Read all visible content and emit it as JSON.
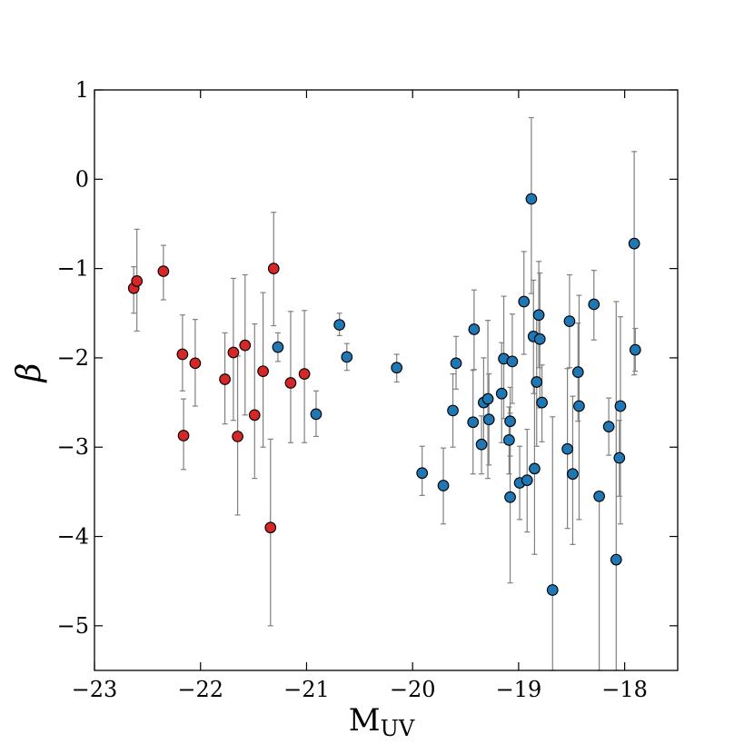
{
  "chart_data": {
    "type": "scatter",
    "xlabel": "M",
    "xlabel_sub": "UV",
    "ylabel": "β",
    "xlim": [
      -23,
      -17.5
    ],
    "ylim": [
      -5.5,
      1
    ],
    "xticks": [
      -23,
      -22,
      -21,
      -20,
      -19,
      -18
    ],
    "yticks": [
      1,
      0,
      -1,
      -2,
      -3,
      -4,
      -5
    ],
    "xtick_labels": [
      "−23",
      "−22",
      "−21",
      "−20",
      "−19",
      "−18"
    ],
    "ytick_labels": [
      "1",
      "0",
      "−1",
      "−2",
      "−3",
      "−4",
      "−5"
    ],
    "grid": false,
    "colors": {
      "red": "#d62728",
      "blue": "#1f77b4",
      "errorbar": "#808080",
      "edge": "#000000"
    },
    "series": [
      {
        "color": "red",
        "points": [
          {
            "x": -22.63,
            "y": -1.22,
            "lo": -1.5,
            "hi": -0.98
          },
          {
            "x": -22.6,
            "y": -1.14,
            "lo": -1.7,
            "hi": -0.56
          },
          {
            "x": -22.35,
            "y": -1.03,
            "lo": -1.35,
            "hi": -0.74
          },
          {
            "x": -22.17,
            "y": -1.96,
            "lo": -2.37,
            "hi": -1.52
          },
          {
            "x": -22.16,
            "y": -2.87,
            "lo": -3.25,
            "hi": -2.46
          },
          {
            "x": -22.05,
            "y": -2.06,
            "lo": -2.54,
            "hi": -1.57
          },
          {
            "x": -21.77,
            "y": -2.24,
            "lo": -2.74,
            "hi": -1.72
          },
          {
            "x": -21.69,
            "y": -1.94,
            "lo": -2.7,
            "hi": -1.11
          },
          {
            "x": -21.65,
            "y": -2.88,
            "lo": -3.76,
            "hi": -1.98
          },
          {
            "x": -21.58,
            "y": -1.86,
            "lo": -2.64,
            "hi": -1.07
          },
          {
            "x": -21.49,
            "y": -2.64,
            "lo": -3.35,
            "hi": -1.62
          },
          {
            "x": -21.41,
            "y": -2.15,
            "lo": -3.0,
            "hi": -1.27
          },
          {
            "x": -21.34,
            "y": -3.9,
            "lo": -5.0,
            "hi": -2.91
          },
          {
            "x": -21.31,
            "y": -1.0,
            "lo": -1.64,
            "hi": -0.37
          },
          {
            "x": -21.15,
            "y": -2.28,
            "lo": -2.95,
            "hi": -1.48
          },
          {
            "x": -21.02,
            "y": -2.18,
            "lo": -2.95,
            "hi": -1.47
          }
        ]
      },
      {
        "color": "blue",
        "points": [
          {
            "x": -21.27,
            "y": -1.88,
            "lo": -2.04,
            "hi": -1.72
          },
          {
            "x": -20.91,
            "y": -2.63,
            "lo": -2.88,
            "hi": -2.37
          },
          {
            "x": -20.69,
            "y": -1.63,
            "lo": -1.75,
            "hi": -1.5
          },
          {
            "x": -20.62,
            "y": -1.99,
            "lo": -2.14,
            "hi": -1.84
          },
          {
            "x": -20.15,
            "y": -2.11,
            "lo": -2.27,
            "hi": -1.96
          },
          {
            "x": -19.91,
            "y": -3.29,
            "lo": -3.54,
            "hi": -2.99
          },
          {
            "x": -19.71,
            "y": -3.43,
            "lo": -3.86,
            "hi": -3.01
          },
          {
            "x": -19.62,
            "y": -2.59,
            "lo": -3.0,
            "hi": -2.18
          },
          {
            "x": -19.59,
            "y": -2.06,
            "lo": -2.35,
            "hi": -1.76
          },
          {
            "x": -19.43,
            "y": -2.72,
            "lo": -3.3,
            "hi": -2.14
          },
          {
            "x": -19.42,
            "y": -1.68,
            "lo": -2.13,
            "hi": -1.24
          },
          {
            "x": -19.35,
            "y": -2.97,
            "lo": -3.3,
            "hi": -2.65
          },
          {
            "x": -19.33,
            "y": -2.5,
            "lo": -3.0,
            "hi": -2.0
          },
          {
            "x": -19.29,
            "y": -2.46,
            "lo": -3.35,
            "hi": -1.58
          },
          {
            "x": -19.28,
            "y": -2.69,
            "lo": -3.2,
            "hi": -2.18
          },
          {
            "x": -19.16,
            "y": -2.4,
            "lo": -2.95,
            "hi": -1.83
          },
          {
            "x": -19.14,
            "y": -2.01,
            "lo": -2.68,
            "hi": -1.31
          },
          {
            "x": -19.09,
            "y": -2.92,
            "lo": -3.3,
            "hi": -2.55
          },
          {
            "x": -19.08,
            "y": -2.71,
            "lo": -3.1,
            "hi": -2.33
          },
          {
            "x": -19.08,
            "y": -3.56,
            "lo": -4.52,
            "hi": -2.62
          },
          {
            "x": -19.06,
            "y": -2.04,
            "lo": -2.51,
            "hi": -1.51
          },
          {
            "x": -18.99,
            "y": -3.4,
            "lo": -3.81,
            "hi": -2.99
          },
          {
            "x": -18.95,
            "y": -1.37,
            "lo": -1.96,
            "hi": -0.81
          },
          {
            "x": -18.92,
            "y": -3.37,
            "lo": -3.95,
            "hi": -2.8
          },
          {
            "x": -18.88,
            "y": -0.22,
            "lo": -1.28,
            "hi": 0.69
          },
          {
            "x": -18.86,
            "y": -1.76,
            "lo": -2.4,
            "hi": -1.13
          },
          {
            "x": -18.85,
            "y": -3.24,
            "lo": -4.2,
            "hi": -2.28
          },
          {
            "x": -18.83,
            "y": -2.27,
            "lo": -2.99,
            "hi": -1.55
          },
          {
            "x": -18.81,
            "y": -1.52,
            "lo": -2.11,
            "hi": -0.92
          },
          {
            "x": -18.8,
            "y": -1.79,
            "lo": -2.56,
            "hi": -1.05
          },
          {
            "x": -18.78,
            "y": -2.5,
            "lo": -2.94,
            "hi": -2.08
          },
          {
            "x": -18.68,
            "y": -4.6,
            "lo": -5.5,
            "hi": -2.66
          },
          {
            "x": -18.54,
            "y": -3.02,
            "lo": -3.91,
            "hi": -2.12
          },
          {
            "x": -18.52,
            "y": -1.59,
            "lo": -2.11,
            "hi": -1.07
          },
          {
            "x": -18.49,
            "y": -3.3,
            "lo": -4.09,
            "hi": -2.43
          },
          {
            "x": -18.44,
            "y": -2.16,
            "lo": -2.71,
            "hi": -1.61
          },
          {
            "x": -18.43,
            "y": -2.54,
            "lo": -3.81,
            "hi": -1.3
          },
          {
            "x": -18.29,
            "y": -1.4,
            "lo": -1.8,
            "hi": -1.02
          },
          {
            "x": -18.15,
            "y": -2.77,
            "lo": -3.09,
            "hi": -2.45
          },
          {
            "x": -18.24,
            "y": -3.55,
            "lo": -5.5,
            "hi": -3.55
          },
          {
            "x": -18.08,
            "y": -4.26,
            "lo": -5.5,
            "hi": -1.37
          },
          {
            "x": -18.05,
            "y": -3.12,
            "lo": -3.55,
            "hi": -2.7
          },
          {
            "x": -18.04,
            "y": -2.54,
            "lo": -3.86,
            "hi": -1.54
          },
          {
            "x": -17.91,
            "y": -0.72,
            "lo": -2.19,
            "hi": 0.31
          },
          {
            "x": -17.9,
            "y": -1.91,
            "lo": -2.15,
            "hi": -1.67
          }
        ]
      }
    ]
  }
}
